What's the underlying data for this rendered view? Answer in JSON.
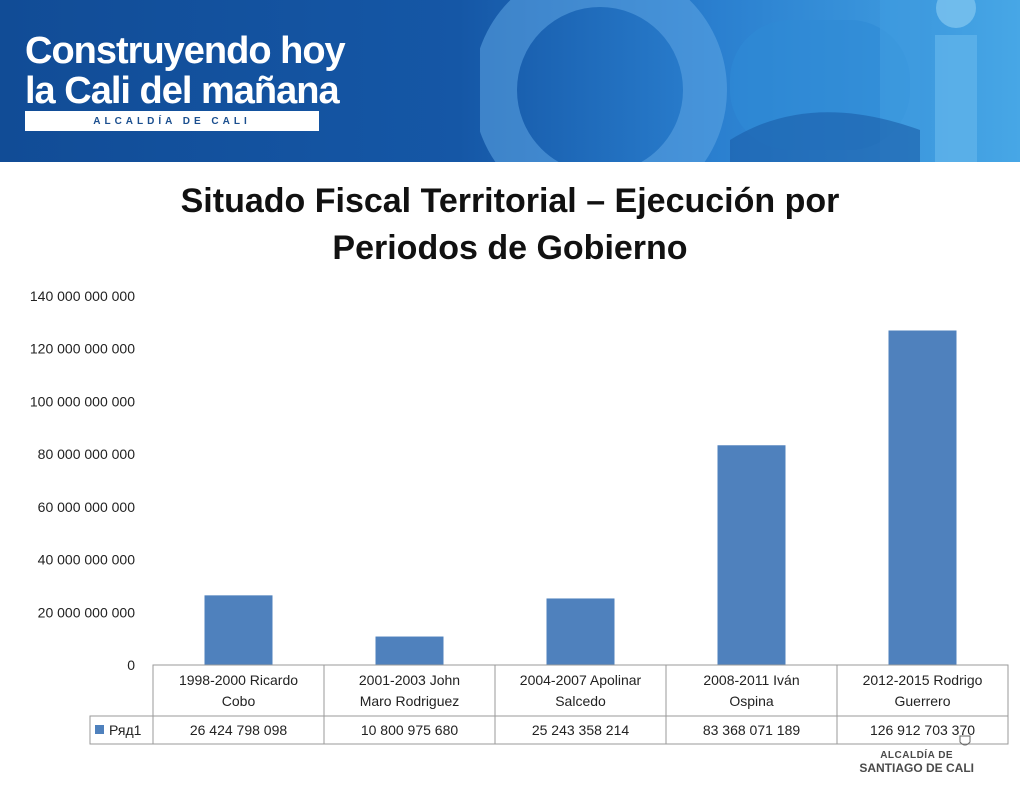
{
  "banner": {
    "logo_line1": "Construyendo hoy",
    "logo_line2": "la Cali del mañana",
    "logo_strip": "ALCALDÍA DE CALI",
    "brand_colors": [
      "#114c96",
      "#47a7e6",
      "#f2c21b",
      "#e2231a"
    ]
  },
  "footer": {
    "line1": "ALCALDÍA DE",
    "line2": "SANTIAGO DE CALI"
  },
  "chart_data": {
    "type": "bar",
    "title_lines": [
      "Situado Fiscal Territorial – Ejecución por",
      "Periodos de Gobierno"
    ],
    "categories": [
      [
        "1998-2000 Ricardo",
        "Cobo"
      ],
      [
        "2001-2003      John",
        "Maro Rodriguez"
      ],
      [
        "2004-2007 Apolinar",
        "Salcedo"
      ],
      [
        "2008-2011      Iván",
        "Ospina"
      ],
      [
        "2012-2015 Rodrigo",
        "Guerrero"
      ]
    ],
    "series": [
      {
        "name": "Ряд1",
        "values": [
          26424798098,
          10800975680,
          25243358214,
          83368071189,
          126912703370
        ],
        "value_labels": [
          "26 424 798 098",
          "10 800 975 680",
          "25 243 358 214",
          "83 368 071 189",
          "126 912 703 370"
        ],
        "color": "#4f81bd"
      }
    ],
    "ylim": [
      0,
      140000000000
    ],
    "yticks": [
      0,
      20000000000,
      40000000000,
      60000000000,
      80000000000,
      100000000000,
      120000000000,
      140000000000
    ],
    "ytick_labels": [
      "0",
      "20 000 000 000",
      "40 000 000 000",
      "60 000 000 000",
      "80 000 000 000",
      "100 000 000 000",
      "120 000 000 000",
      "140 000 000 000"
    ],
    "grid": false,
    "data_table": true,
    "legend_placement": "in data table"
  }
}
